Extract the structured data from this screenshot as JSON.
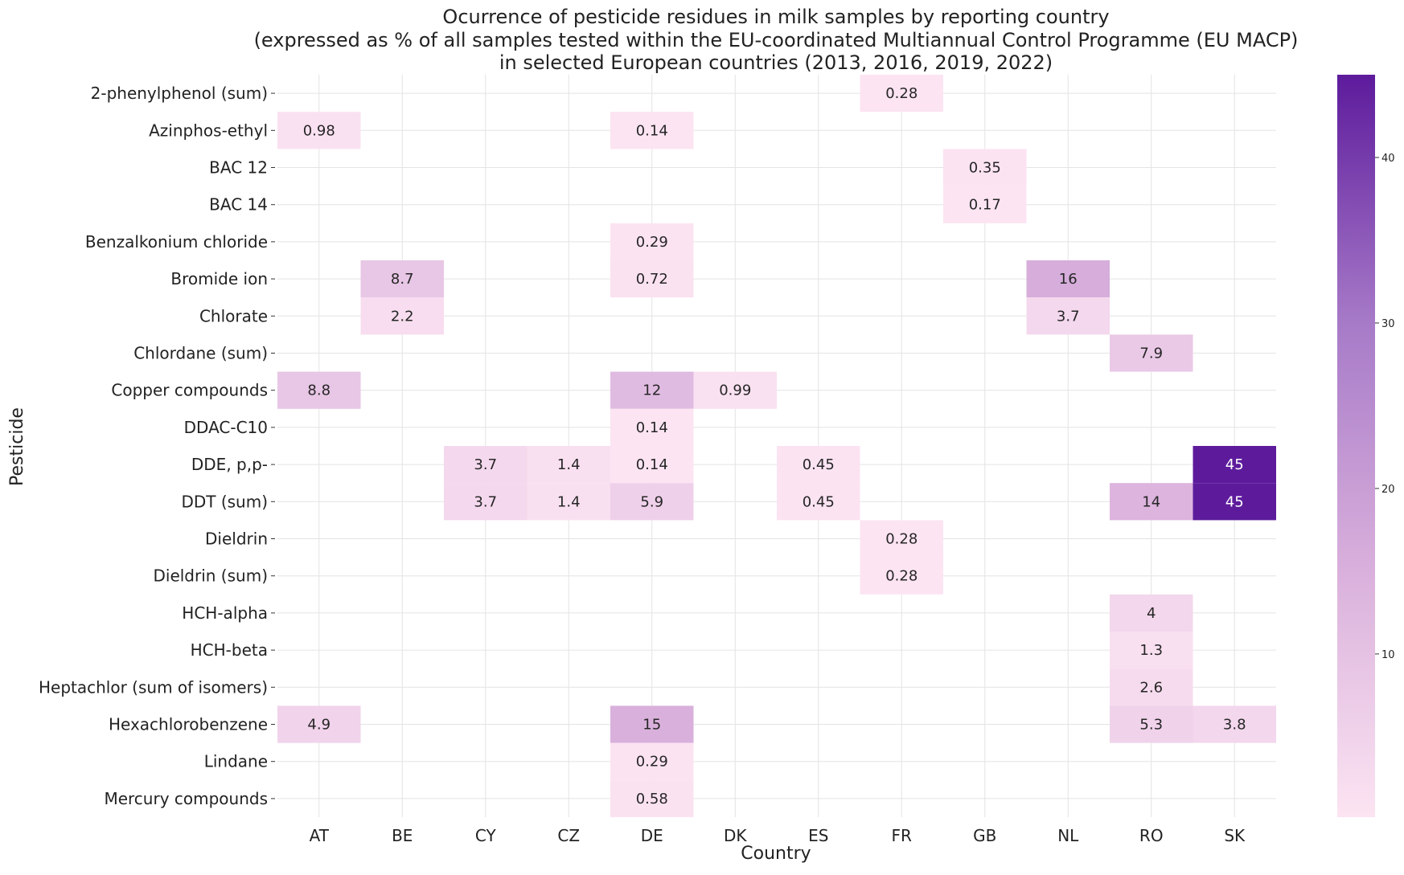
{
  "chart_data": {
    "type": "heatmap",
    "title": [
      "Ocurrence of pesticide residues in milk samples by reporting country",
      "(expressed as % of all samples tested within the EU-coordinated Multiannual Control Programme (EU MACP)",
      "in selected European countries (2013, 2016, 2019, 2022)"
    ],
    "xlabel": "Country",
    "ylabel": "Pesticide",
    "x_categories": [
      "AT",
      "BE",
      "CY",
      "CZ",
      "DE",
      "DK",
      "ES",
      "FR",
      "GB",
      "NL",
      "RO",
      "SK"
    ],
    "y_categories": [
      "2-phenylphenol (sum)",
      "Azinphos-ethyl",
      "BAC 12",
      "BAC 14",
      "Benzalkonium chloride",
      "Bromide ion",
      "Chlorate",
      "Chlordane (sum)",
      "Copper compounds",
      "DDAC-C10",
      "DDE, p,p-",
      "DDT (sum)",
      "Dieldrin",
      "Dieldrin (sum)",
      "HCH-alpha",
      "HCH-beta",
      "Heptachlor (sum of isomers)",
      "Hexachlorobenzene",
      "Lindane",
      "Mercury compounds"
    ],
    "cells": [
      {
        "y": "2-phenylphenol (sum)",
        "x": "FR",
        "value": 0.28,
        "label": "0.28"
      },
      {
        "y": "Azinphos-ethyl",
        "x": "AT",
        "value": 0.98,
        "label": "0.98"
      },
      {
        "y": "Azinphos-ethyl",
        "x": "DE",
        "value": 0.14,
        "label": "0.14"
      },
      {
        "y": "BAC 12",
        "x": "GB",
        "value": 0.35,
        "label": "0.35"
      },
      {
        "y": "BAC 14",
        "x": "GB",
        "value": 0.17,
        "label": "0.17"
      },
      {
        "y": "Benzalkonium chloride",
        "x": "DE",
        "value": 0.29,
        "label": "0.29"
      },
      {
        "y": "Bromide ion",
        "x": "BE",
        "value": 8.7,
        "label": "8.7"
      },
      {
        "y": "Bromide ion",
        "x": "DE",
        "value": 0.72,
        "label": "0.72"
      },
      {
        "y": "Bromide ion",
        "x": "NL",
        "value": 16,
        "label": "16"
      },
      {
        "y": "Chlorate",
        "x": "BE",
        "value": 2.2,
        "label": "2.2"
      },
      {
        "y": "Chlorate",
        "x": "NL",
        "value": 3.7,
        "label": "3.7"
      },
      {
        "y": "Chlordane (sum)",
        "x": "RO",
        "value": 7.9,
        "label": "7.9"
      },
      {
        "y": "Copper compounds",
        "x": "AT",
        "value": 8.8,
        "label": "8.8"
      },
      {
        "y": "Copper compounds",
        "x": "DE",
        "value": 12,
        "label": "12"
      },
      {
        "y": "Copper compounds",
        "x": "DK",
        "value": 0.99,
        "label": "0.99"
      },
      {
        "y": "DDAC-C10",
        "x": "DE",
        "value": 0.14,
        "label": "0.14"
      },
      {
        "y": "DDE, p,p-",
        "x": "CY",
        "value": 3.7,
        "label": "3.7"
      },
      {
        "y": "DDE, p,p-",
        "x": "CZ",
        "value": 1.4,
        "label": "1.4"
      },
      {
        "y": "DDE, p,p-",
        "x": "DE",
        "value": 0.14,
        "label": "0.14"
      },
      {
        "y": "DDE, p,p-",
        "x": "ES",
        "value": 0.45,
        "label": "0.45"
      },
      {
        "y": "DDE, p,p-",
        "x": "SK",
        "value": 45,
        "label": "45"
      },
      {
        "y": "DDT (sum)",
        "x": "CY",
        "value": 3.7,
        "label": "3.7"
      },
      {
        "y": "DDT (sum)",
        "x": "CZ",
        "value": 1.4,
        "label": "1.4"
      },
      {
        "y": "DDT (sum)",
        "x": "DE",
        "value": 5.9,
        "label": "5.9"
      },
      {
        "y": "DDT (sum)",
        "x": "ES",
        "value": 0.45,
        "label": "0.45"
      },
      {
        "y": "DDT (sum)",
        "x": "RO",
        "value": 14,
        "label": "14"
      },
      {
        "y": "DDT (sum)",
        "x": "SK",
        "value": 45,
        "label": "45"
      },
      {
        "y": "Dieldrin",
        "x": "FR",
        "value": 0.28,
        "label": "0.28"
      },
      {
        "y": "Dieldrin (sum)",
        "x": "FR",
        "value": 0.28,
        "label": "0.28"
      },
      {
        "y": "HCH-alpha",
        "x": "RO",
        "value": 4,
        "label": "4"
      },
      {
        "y": "HCH-beta",
        "x": "RO",
        "value": 1.3,
        "label": "1.3"
      },
      {
        "y": "Heptachlor (sum of isomers)",
        "x": "RO",
        "value": 2.6,
        "label": "2.6"
      },
      {
        "y": "Hexachlorobenzene",
        "x": "AT",
        "value": 4.9,
        "label": "4.9"
      },
      {
        "y": "Hexachlorobenzene",
        "x": "DE",
        "value": 15,
        "label": "15"
      },
      {
        "y": "Hexachlorobenzene",
        "x": "RO",
        "value": 5.3,
        "label": "5.3"
      },
      {
        "y": "Hexachlorobenzene",
        "x": "SK",
        "value": 3.8,
        "label": "3.8"
      },
      {
        "y": "Lindane",
        "x": "DE",
        "value": 0.29,
        "label": "0.29"
      },
      {
        "y": "Mercury compounds",
        "x": "DE",
        "value": 0.58,
        "label": "0.58"
      }
    ],
    "colorbar": {
      "min": 0.14,
      "max": 45,
      "ticks": [
        10,
        20,
        30,
        40
      ],
      "colors": [
        "#fce4f2",
        "#d9b0dc",
        "#a77ac8",
        "#5d1b9c"
      ]
    },
    "grid": true
  }
}
